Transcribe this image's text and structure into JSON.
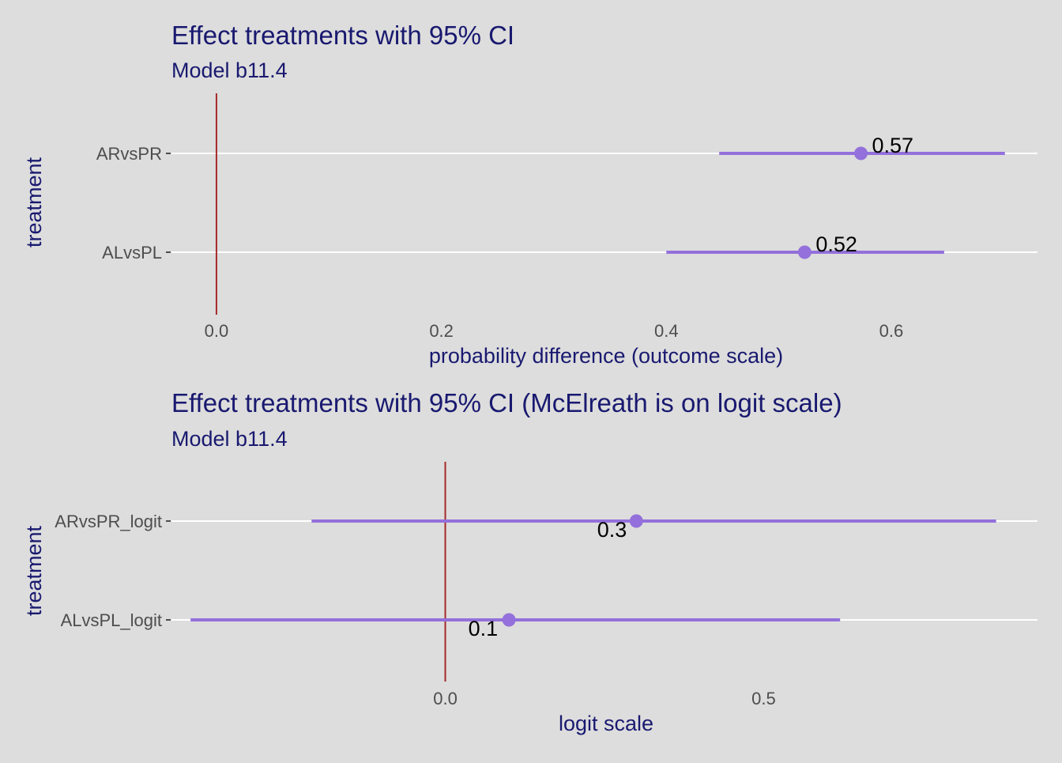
{
  "colors": {
    "background": "#dddddd",
    "gridline": "#ffffff",
    "interval": "#9370db",
    "point": "#9370db",
    "reference_line": "#a52a2a",
    "title": "#191970",
    "tick_label": "#4d4d4d",
    "data_label": "#000000"
  },
  "chart_data": [
    {
      "type": "pointrange",
      "title": "Effect treatments with 95% CI",
      "subtitle": "Model b11.4",
      "xlabel": "probability difference (outcome scale)",
      "ylabel": "treatment",
      "xlim": [
        -0.04,
        0.73
      ],
      "xticks": [
        0.0,
        0.2,
        0.4,
        0.6
      ],
      "xtick_labels": [
        "0.0",
        "0.2",
        "0.4",
        "0.6"
      ],
      "reference_x": 0.0,
      "grid": "horizontal-only",
      "categories": [
        "ARvsPR",
        "ALvsPL"
      ],
      "points": [
        {
          "category": "ARvsPR",
          "estimate": 0.573,
          "lower": 0.447,
          "upper": 0.701,
          "label": "0.57"
        },
        {
          "category": "ALvsPL",
          "estimate": 0.523,
          "lower": 0.4,
          "upper": 0.647,
          "label": "0.52"
        }
      ]
    },
    {
      "type": "pointrange",
      "title": "Effect treatments with 95% CI (McElreath is on logit scale)",
      "subtitle": "Model b11.4",
      "xlabel": "logit scale",
      "ylabel": "treatment",
      "xlim": [
        -0.43,
        0.93
      ],
      "xticks": [
        0.0,
        0.5
      ],
      "xtick_labels": [
        "0.0",
        "0.5"
      ],
      "reference_x": 0.0,
      "grid": "horizontal-only",
      "categories": [
        "ARvsPR_logit",
        "ALvsPL_logit"
      ],
      "points": [
        {
          "category": "ARvsPR_logit",
          "estimate": 0.3,
          "lower": -0.21,
          "upper": 0.865,
          "label": "0.3"
        },
        {
          "category": "ALvsPL_logit",
          "estimate": 0.1,
          "lower": -0.4,
          "upper": 0.62,
          "label": "0.1"
        }
      ]
    }
  ]
}
